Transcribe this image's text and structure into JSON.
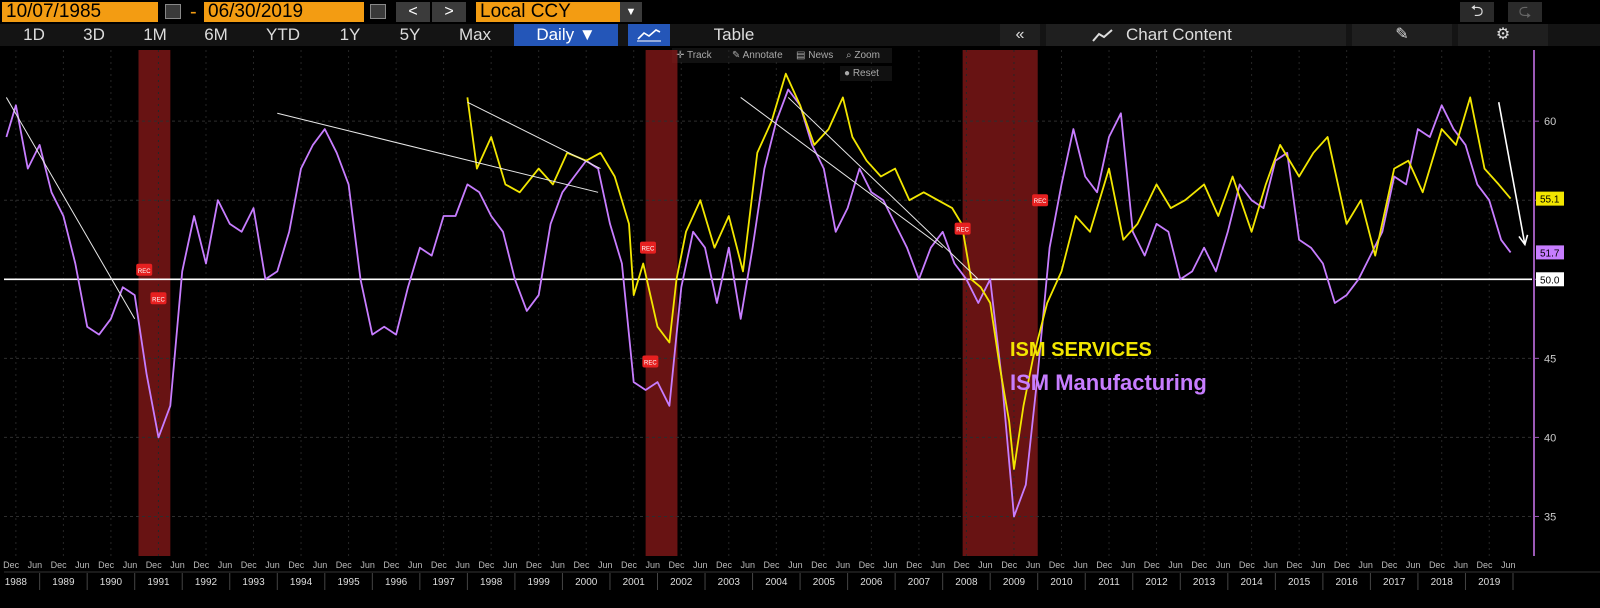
{
  "toolbar": {
    "start_date": "10/07/1985",
    "end_date": "06/30/2019",
    "date_separator": "-",
    "prev_label": "<",
    "next_label": ">",
    "currency": "Local CCY",
    "undo_label": "⮌",
    "redo_label": "⮎"
  },
  "timeframes": [
    "1D",
    "3D",
    "1M",
    "6M",
    "YTD",
    "1Y",
    "5Y",
    "Max"
  ],
  "frequency": "Daily",
  "table_label": "Table",
  "chart_content_label": "Chart Content",
  "chart_tools": {
    "track": "Track",
    "annotate": "Annotate",
    "news": "News",
    "zoom": "Zoom",
    "reset": "Reset"
  },
  "colors": {
    "services": "#f2e600",
    "manufacturing": "#c77dff",
    "recession": "#8b1a1a",
    "axis": "#9b59b6",
    "accent": "#f39c12"
  },
  "chart_data": {
    "type": "line",
    "ylim": [
      32.5,
      64.5
    ],
    "yticks": [
      35,
      40,
      45,
      50,
      55,
      60
    ],
    "xlim": [
      1987.75,
      2019.9
    ],
    "year_labels": [
      "1988",
      "1989",
      "1990",
      "1991",
      "1992",
      "1993",
      "1994",
      "1995",
      "1996",
      "1997",
      "1998",
      "1999",
      "2000",
      "2001",
      "2002",
      "2003",
      "2004",
      "2005",
      "2006",
      "2007",
      "2008",
      "2009",
      "2010",
      "2011",
      "2012",
      "2013",
      "2014",
      "2015",
      "2016",
      "2017",
      "2018",
      "2019"
    ],
    "month_tick_pattern": [
      "Dec",
      "Jun"
    ],
    "reference_line": {
      "value": 50.0,
      "label": "50.0"
    },
    "last_values": [
      {
        "series": "ISM SERVICES",
        "value": 55.1,
        "label": "55.1"
      },
      {
        "series": "ISM Manufacturing",
        "value": 51.7,
        "label": "51.7"
      }
    ],
    "recessions": [
      [
        1990.58,
        1991.25
      ],
      [
        2001.25,
        2001.92
      ],
      [
        2007.92,
        2009.5
      ]
    ],
    "rec_marker_label": "REC",
    "series": [
      {
        "name": "ISM SERVICES",
        "color": "#f2e600",
        "x": [
          1997.5,
          1997.7,
          1998.0,
          1998.3,
          1998.6,
          1999.0,
          1999.3,
          1999.6,
          2000.0,
          2000.3,
          2000.6,
          2000.9,
          2001.0,
          2001.2,
          2001.5,
          2001.75,
          2001.9,
          2002.1,
          2002.4,
          2002.7,
          2003.0,
          2003.3,
          2003.6,
          2003.9,
          2004.2,
          2004.5,
          2004.8,
          2005.1,
          2005.4,
          2005.6,
          2005.9,
          2006.2,
          2006.5,
          2006.8,
          2007.1,
          2007.4,
          2007.7,
          2007.9,
          2008.1,
          2008.3,
          2008.5,
          2008.7,
          2008.9,
          2009.0,
          2009.2,
          2009.4,
          2009.7,
          2010.0,
          2010.3,
          2010.6,
          2011.0,
          2011.3,
          2011.6,
          2012.0,
          2012.3,
          2012.6,
          2013.0,
          2013.3,
          2013.6,
          2014.0,
          2014.3,
          2014.6,
          2015.0,
          2015.3,
          2015.6,
          2016.0,
          2016.3,
          2016.6,
          2017.0,
          2017.3,
          2017.6,
          2018.0,
          2018.3,
          2018.6,
          2018.9,
          2019.2,
          2019.45
        ],
        "values": [
          61.5,
          57.0,
          59.0,
          56.0,
          55.5,
          57.0,
          56.0,
          58.0,
          57.5,
          58.0,
          56.5,
          53.5,
          49.0,
          51.0,
          47.0,
          46.0,
          50.0,
          53.0,
          55.0,
          52.0,
          54.0,
          50.5,
          58.0,
          60.0,
          63.0,
          61.0,
          58.5,
          59.5,
          61.5,
          59.0,
          57.5,
          56.5,
          57.0,
          55.0,
          55.5,
          55.0,
          54.5,
          53.5,
          50.0,
          49.5,
          48.5,
          44.5,
          41.0,
          38.0,
          42.0,
          45.0,
          48.5,
          50.5,
          54.0,
          53.0,
          57.0,
          52.5,
          53.5,
          56.0,
          54.5,
          55.0,
          56.0,
          54.0,
          56.5,
          53.0,
          56.0,
          58.5,
          56.5,
          58.0,
          59.0,
          53.5,
          55.0,
          51.5,
          57.0,
          57.5,
          55.5,
          59.5,
          58.5,
          61.5,
          57.0,
          56.0,
          55.1
        ]
      },
      {
        "name": "ISM Manufacturing",
        "color": "#c77dff",
        "x": [
          1987.8,
          1988.0,
          1988.25,
          1988.5,
          1988.75,
          1989.0,
          1989.25,
          1989.5,
          1989.75,
          1990.0,
          1990.25,
          1990.5,
          1990.75,
          1991.0,
          1991.25,
          1991.5,
          1991.75,
          1992.0,
          1992.25,
          1992.5,
          1992.75,
          1993.0,
          1993.25,
          1993.5,
          1993.75,
          1994.0,
          1994.25,
          1994.5,
          1994.75,
          1995.0,
          1995.25,
          1995.5,
          1995.75,
          1996.0,
          1996.25,
          1996.5,
          1996.75,
          1997.0,
          1997.25,
          1997.5,
          1997.75,
          1998.0,
          1998.25,
          1998.5,
          1998.75,
          1999.0,
          1999.25,
          1999.5,
          1999.75,
          2000.0,
          2000.25,
          2000.5,
          2000.75,
          2001.0,
          2001.25,
          2001.5,
          2001.75,
          2002.0,
          2002.25,
          2002.5,
          2002.75,
          2003.0,
          2003.25,
          2003.5,
          2003.75,
          2004.0,
          2004.25,
          2004.5,
          2004.75,
          2005.0,
          2005.25,
          2005.5,
          2005.75,
          2006.0,
          2006.25,
          2006.5,
          2006.75,
          2007.0,
          2007.25,
          2007.5,
          2007.75,
          2008.0,
          2008.25,
          2008.5,
          2008.75,
          2009.0,
          2009.25,
          2009.5,
          2009.75,
          2010.0,
          2010.25,
          2010.5,
          2010.75,
          2011.0,
          2011.25,
          2011.5,
          2011.75,
          2012.0,
          2012.25,
          2012.5,
          2012.75,
          2013.0,
          2013.25,
          2013.5,
          2013.75,
          2014.0,
          2014.25,
          2014.5,
          2014.75,
          2015.0,
          2015.25,
          2015.5,
          2015.75,
          2016.0,
          2016.25,
          2016.5,
          2016.75,
          2017.0,
          2017.25,
          2017.5,
          2017.75,
          2018.0,
          2018.25,
          2018.5,
          2018.75,
          2019.0,
          2019.25,
          2019.45
        ],
        "values": [
          59.0,
          61.0,
          57.0,
          58.5,
          55.5,
          54.0,
          51.0,
          47.0,
          46.5,
          47.5,
          49.5,
          49.0,
          44.0,
          40.0,
          42.0,
          50.5,
          54.0,
          51.0,
          55.0,
          53.5,
          53.0,
          54.5,
          50.0,
          50.5,
          53.0,
          57.0,
          58.5,
          59.5,
          58.0,
          56.0,
          50.0,
          46.5,
          47.0,
          46.5,
          49.5,
          52.0,
          51.5,
          54.0,
          54.0,
          56.0,
          55.5,
          54.0,
          53.0,
          50.0,
          48.0,
          49.0,
          53.5,
          55.5,
          56.5,
          57.5,
          57.0,
          53.5,
          51.0,
          43.5,
          43.0,
          43.5,
          42.0,
          49.5,
          53.0,
          52.0,
          48.5,
          52.0,
          47.5,
          52.0,
          57.0,
          60.0,
          62.0,
          61.0,
          58.5,
          57.0,
          53.0,
          54.5,
          57.0,
          55.5,
          55.0,
          53.5,
          52.0,
          50.0,
          52.0,
          53.0,
          51.0,
          50.0,
          48.5,
          50.0,
          43.5,
          35.0,
          37.0,
          44.0,
          52.0,
          56.0,
          59.5,
          56.5,
          55.5,
          59.0,
          60.5,
          53.0,
          51.5,
          53.5,
          53.0,
          50.0,
          50.5,
          52.0,
          50.5,
          53.0,
          56.0,
          55.0,
          54.5,
          57.5,
          58.0,
          52.5,
          52.0,
          51.0,
          48.5,
          49.0,
          50.0,
          51.5,
          53.0,
          56.5,
          56.0,
          59.5,
          59.0,
          61.0,
          59.5,
          58.5,
          56.0,
          55.0,
          52.5,
          51.7
        ]
      }
    ],
    "legend": [
      "ISM SERVICES",
      "ISM Manufacturing"
    ],
    "annotations": {
      "trendlines": [
        {
          "x": [
            1987.8,
            1990.5
          ],
          "y": [
            61.5,
            47.5
          ]
        },
        {
          "x": [
            1993.5,
            2000.25
          ],
          "y": [
            60.5,
            55.5
          ]
        },
        {
          "x": [
            1997.5,
            2000.3
          ],
          "y": [
            61.2,
            57.0
          ]
        },
        {
          "x": [
            2003.25,
            2007.5
          ],
          "y": [
            61.5,
            52.0
          ]
        },
        {
          "x": [
            2004.25,
            2008.25
          ],
          "y": [
            61.5,
            50.0
          ]
        }
      ],
      "arrow": {
        "x": [
          2019.2,
          2019.75
        ],
        "y": [
          61.2,
          52.2
        ]
      }
    }
  }
}
